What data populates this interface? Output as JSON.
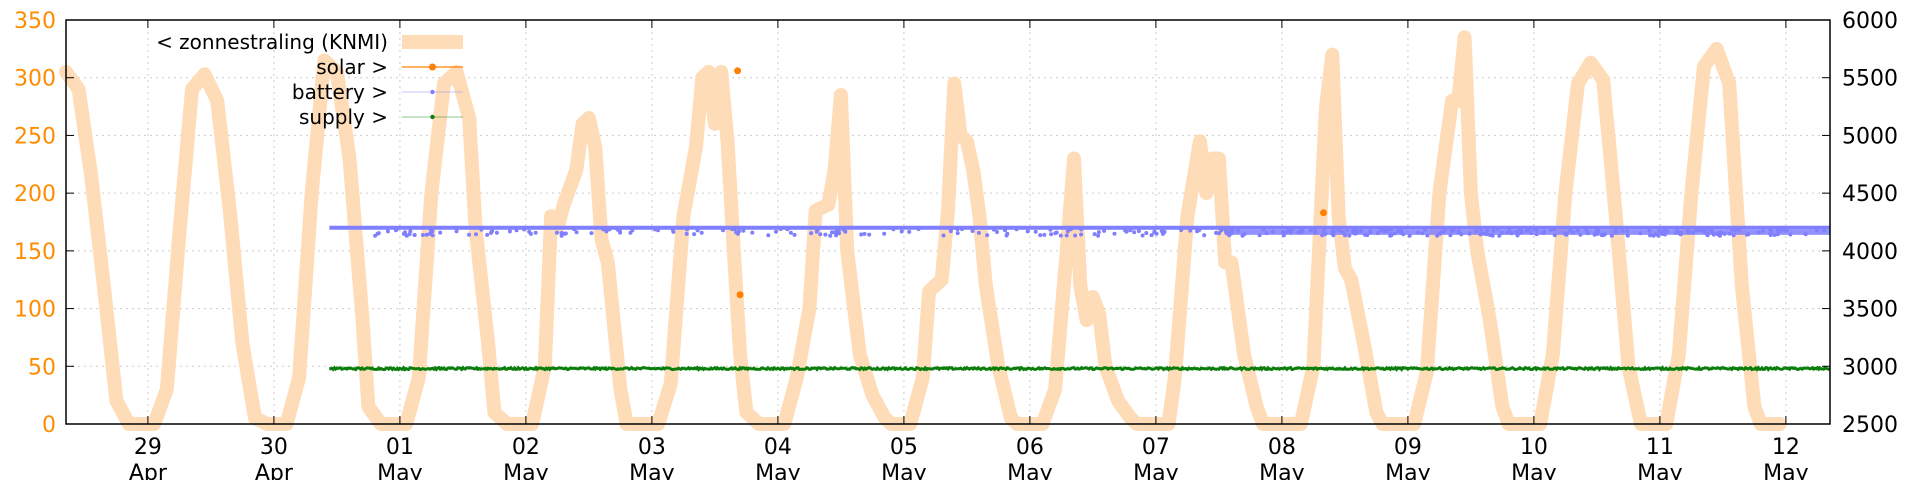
{
  "chart_data": {
    "type": "line",
    "colors": {
      "radiation": "#ffdcb8",
      "solar": "#ff8000",
      "battery": "#7f7fff",
      "supply": "#0a7d0a",
      "left_axis_text": "#ff8c00"
    },
    "legend": {
      "placement": "top-left",
      "entries": [
        {
          "key": "radiation",
          "label": "< zonnestraling (KNMI)"
        },
        {
          "key": "solar",
          "label": "solar >"
        },
        {
          "key": "battery",
          "label": "battery >"
        },
        {
          "key": "supply",
          "label": "supply >"
        }
      ]
    },
    "x_axis": {
      "range_days": [
        28.35,
        42.35
      ],
      "ticks": [
        {
          "day": 29,
          "top": "29",
          "bottom": "Apr"
        },
        {
          "day": 30,
          "top": "30",
          "bottom": "Apr"
        },
        {
          "day": 31,
          "top": "01",
          "bottom": "May"
        },
        {
          "day": 32,
          "top": "02",
          "bottom": "May"
        },
        {
          "day": 33,
          "top": "03",
          "bottom": "May"
        },
        {
          "day": 34,
          "top": "04",
          "bottom": "May"
        },
        {
          "day": 35,
          "top": "05",
          "bottom": "May"
        },
        {
          "day": 36,
          "top": "06",
          "bottom": "May"
        },
        {
          "day": 37,
          "top": "07",
          "bottom": "May"
        },
        {
          "day": 38,
          "top": "08",
          "bottom": "May"
        },
        {
          "day": 39,
          "top": "09",
          "bottom": "May"
        },
        {
          "day": 40,
          "top": "10",
          "bottom": "May"
        },
        {
          "day": 41,
          "top": "11",
          "bottom": "May"
        },
        {
          "day": 42,
          "top": "12",
          "bottom": "May"
        }
      ]
    },
    "y_left": {
      "range": [
        0,
        350
      ],
      "ticks": [
        "0",
        "50",
        "100",
        "150",
        "200",
        "250",
        "300",
        "350"
      ]
    },
    "y_right": {
      "range": [
        2500,
        6000
      ],
      "ticks": [
        "2500",
        "3000",
        "3500",
        "4000",
        "4500",
        "5000",
        "5500",
        "6000"
      ]
    },
    "grid": true,
    "series": [
      {
        "key": "radiation",
        "axis": "left",
        "points": [
          [
            28.35,
            305
          ],
          [
            28.45,
            290
          ],
          [
            28.55,
            215
          ],
          [
            28.65,
            120
          ],
          [
            28.75,
            20
          ],
          [
            28.85,
            0
          ],
          [
            29.05,
            0
          ],
          [
            29.15,
            30
          ],
          [
            29.25,
            165
          ],
          [
            29.35,
            290
          ],
          [
            29.45,
            303
          ],
          [
            29.55,
            280
          ],
          [
            29.65,
            185
          ],
          [
            29.75,
            70
          ],
          [
            29.85,
            5
          ],
          [
            29.95,
            0
          ],
          [
            30.1,
            0
          ],
          [
            30.2,
            40
          ],
          [
            30.3,
            200
          ],
          [
            30.4,
            315
          ],
          [
            30.5,
            305
          ],
          [
            30.6,
            230
          ],
          [
            30.7,
            95
          ],
          [
            30.75,
            15
          ],
          [
            30.85,
            0
          ],
          [
            31.05,
            0
          ],
          [
            31.15,
            40
          ],
          [
            31.25,
            200
          ],
          [
            31.35,
            295
          ],
          [
            31.45,
            305
          ],
          [
            31.55,
            265
          ],
          [
            31.6,
            170
          ],
          [
            31.7,
            70
          ],
          [
            31.75,
            10
          ],
          [
            31.85,
            0
          ],
          [
            32.05,
            0
          ],
          [
            32.15,
            50
          ],
          [
            32.2,
            180
          ],
          [
            32.25,
            170
          ],
          [
            32.3,
            190
          ],
          [
            32.4,
            220
          ],
          [
            32.45,
            260
          ],
          [
            32.5,
            265
          ],
          [
            32.55,
            240
          ],
          [
            32.6,
            160
          ],
          [
            32.65,
            140
          ],
          [
            32.75,
            30
          ],
          [
            32.8,
            0
          ],
          [
            33.05,
            0
          ],
          [
            33.15,
            35
          ],
          [
            33.25,
            180
          ],
          [
            33.35,
            240
          ],
          [
            33.4,
            300
          ],
          [
            33.45,
            305
          ],
          [
            33.5,
            260
          ],
          [
            33.55,
            305
          ],
          [
            33.6,
            245
          ],
          [
            33.65,
            150
          ],
          [
            33.7,
            60
          ],
          [
            33.75,
            10
          ],
          [
            33.85,
            0
          ],
          [
            34.05,
            0
          ],
          [
            34.15,
            40
          ],
          [
            34.25,
            100
          ],
          [
            34.3,
            185
          ],
          [
            34.4,
            190
          ],
          [
            34.45,
            220
          ],
          [
            34.5,
            285
          ],
          [
            34.55,
            150
          ],
          [
            34.65,
            60
          ],
          [
            34.75,
            25
          ],
          [
            34.85,
            5
          ],
          [
            34.9,
            0
          ],
          [
            35.05,
            0
          ],
          [
            35.15,
            40
          ],
          [
            35.2,
            115
          ],
          [
            35.3,
            125
          ],
          [
            35.35,
            185
          ],
          [
            35.4,
            295
          ],
          [
            35.45,
            250
          ],
          [
            35.5,
            245
          ],
          [
            35.55,
            220
          ],
          [
            35.6,
            180
          ],
          [
            35.65,
            120
          ],
          [
            35.75,
            50
          ],
          [
            35.85,
            5
          ],
          [
            35.9,
            0
          ],
          [
            36.1,
            0
          ],
          [
            36.2,
            30
          ],
          [
            36.3,
            160
          ],
          [
            36.35,
            230
          ],
          [
            36.4,
            120
          ],
          [
            36.45,
            90
          ],
          [
            36.5,
            110
          ],
          [
            36.55,
            95
          ],
          [
            36.6,
            50
          ],
          [
            36.7,
            20
          ],
          [
            36.8,
            5
          ],
          [
            36.85,
            0
          ],
          [
            37.1,
            0
          ],
          [
            37.15,
            40
          ],
          [
            37.25,
            180
          ],
          [
            37.35,
            245
          ],
          [
            37.4,
            200
          ],
          [
            37.45,
            230
          ],
          [
            37.5,
            230
          ],
          [
            37.55,
            140
          ],
          [
            37.6,
            140
          ],
          [
            37.7,
            60
          ],
          [
            37.8,
            15
          ],
          [
            37.85,
            0
          ],
          [
            38.15,
            0
          ],
          [
            38.25,
            50
          ],
          [
            38.35,
            275
          ],
          [
            38.4,
            320
          ],
          [
            38.45,
            180
          ],
          [
            38.5,
            135
          ],
          [
            38.55,
            125
          ],
          [
            38.65,
            70
          ],
          [
            38.75,
            10
          ],
          [
            38.8,
            0
          ],
          [
            39.05,
            0
          ],
          [
            39.15,
            45
          ],
          [
            39.25,
            200
          ],
          [
            39.35,
            280
          ],
          [
            39.4,
            280
          ],
          [
            39.45,
            335
          ],
          [
            39.5,
            200
          ],
          [
            39.55,
            150
          ],
          [
            39.65,
            90
          ],
          [
            39.75,
            15
          ],
          [
            39.8,
            0
          ],
          [
            40.05,
            0
          ],
          [
            40.15,
            60
          ],
          [
            40.25,
            200
          ],
          [
            40.35,
            295
          ],
          [
            40.45,
            313
          ],
          [
            40.55,
            298
          ],
          [
            40.65,
            180
          ],
          [
            40.75,
            50
          ],
          [
            40.85,
            0
          ],
          [
            41.05,
            0
          ],
          [
            41.15,
            60
          ],
          [
            41.25,
            200
          ],
          [
            41.35,
            310
          ],
          [
            41.45,
            325
          ],
          [
            41.55,
            295
          ],
          [
            41.65,
            120
          ],
          [
            41.75,
            15
          ],
          [
            41.8,
            0
          ],
          [
            41.95,
            0
          ]
        ]
      },
      {
        "key": "solar",
        "axis": "left",
        "points": [
          [
            33.68,
            306
          ],
          [
            33.7,
            112
          ],
          [
            38.33,
            183
          ]
        ]
      },
      {
        "key": "battery",
        "axis": "right",
        "main_level": 4200,
        "range_days": [
          30.44,
          42.35
        ],
        "scatter_band": [
          4130,
          4190
        ],
        "scatter_count": 520
      },
      {
        "key": "supply",
        "axis": "right",
        "level": 2980,
        "range_days": [
          30.44,
          42.35
        ],
        "jitter": 8
      }
    ]
  }
}
